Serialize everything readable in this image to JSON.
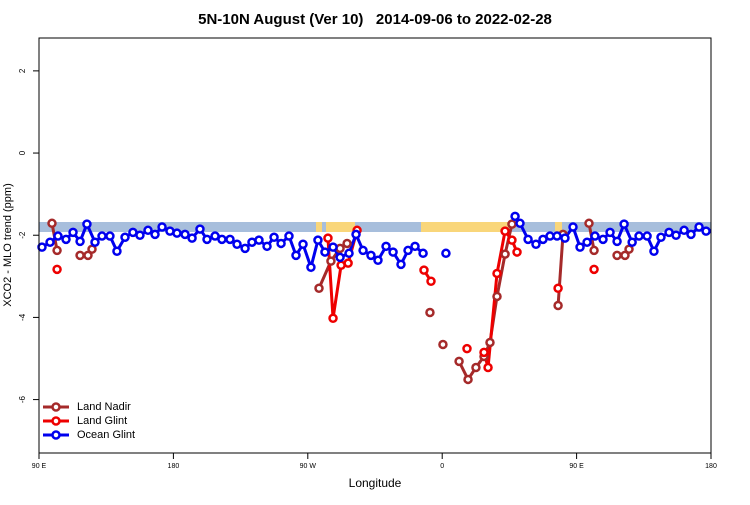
{
  "chart_data": {
    "type": "line",
    "title": "5N-10N August (Ver 10)   2014-09-06 to 2022-02-28",
    "xlabel": "Longitude",
    "ylabel": "XCO2 - MLO trend (ppm)",
    "xlim": [
      90,
      540
    ],
    "xticks": [
      {
        "value": 90,
        "label": "90 E"
      },
      180,
      {
        "value": 270,
        "label": "90 W"
      },
      {
        "value": 360,
        "label": "0"
      },
      {
        "value": 450,
        "label": "90 E"
      },
      {
        "value": 540,
        "label": "180"
      }
    ],
    "ylim": [
      -7.3,
      2.8
    ],
    "yticks": [
      2,
      0,
      -2,
      -4,
      -6
    ],
    "legend": "bottomleft",
    "series": [
      {
        "name": "Land Nadir",
        "color": "#a52a2a",
        "x": [
          98.7,
          102.1,
          null,
          117.5,
          122.8,
          125.5,
          null,
          277.5,
          285.5,
          291.6,
          296.3,
          null,
          351.8,
          null,
          360.5,
          null,
          371.3,
          377.3,
          382.6,
          388.0,
          392.0,
          396.7,
          402.1,
          406.7,
          null,
          437.6,
          440.9,
          null,
          458.3,
          461.7,
          null,
          477.1,
          482.4,
          485.1
        ],
        "values": [
          -1.71,
          -2.37,
          null,
          -2.49,
          -2.49,
          -2.34,
          null,
          -3.29,
          -2.63,
          -2.32,
          -2.2,
          null,
          -3.88,
          null,
          -4.66,
          null,
          -5.07,
          -5.51,
          -5.22,
          -4.95,
          -4.61,
          -3.49,
          -2.46,
          -1.73,
          null,
          -3.71,
          -1.98,
          null,
          -1.71,
          -2.37,
          null,
          -2.49,
          -2.49,
          -2.34
        ]
      },
      {
        "name": "Land Glint",
        "color": "#ee0000",
        "x": [
          102.1,
          null,
          283.5,
          286.9,
          292.3,
          297.0,
          303.0,
          null,
          347.8,
          352.5,
          null,
          376.6,
          null,
          388.0,
          390.7,
          396.7,
          402.1,
          406.7,
          410.1,
          null,
          437.6,
          null,
          461.7
        ],
        "values": [
          -2.83,
          null,
          -2.07,
          -4.02,
          -2.73,
          -2.68,
          -1.88,
          null,
          -2.85,
          -3.12,
          null,
          -4.76,
          null,
          -4.85,
          -5.22,
          -2.93,
          -1.9,
          -2.12,
          -2.41,
          null,
          -3.29,
          null,
          -2.83
        ]
      },
      {
        "name": "Ocean Glint",
        "color": "#0000ee",
        "x": [
          92.0,
          97.4,
          102.7,
          108.1,
          112.8,
          117.5,
          122.1,
          127.5,
          132.2,
          137.5,
          142.2,
          147.6,
          152.9,
          157.6,
          163.0,
          167.7,
          172.4,
          177.7,
          182.4,
          187.8,
          192.5,
          197.8,
          202.5,
          207.9,
          212.5,
          217.9,
          222.6,
          228.0,
          232.6,
          237.3,
          242.7,
          247.4,
          252.1,
          257.4,
          262.1,
          266.8,
          272.1,
          276.8,
          281.5,
          286.9,
          291.6,
          297.6,
          302.3,
          307.0,
          312.3,
          317.0,
          322.4,
          327.1,
          332.4,
          337.1,
          341.8,
          347.2,
          null,
          362.5,
          null,
          408.8,
          412.1,
          417.5,
          422.8,
          427.5,
          432.2,
          436.9,
          442.2,
          447.6,
          452.3,
          457.0,
          462.3,
          467.7,
          472.4,
          477.1,
          481.8,
          487.2,
          491.8,
          497.2,
          501.8,
          506.5,
          511.9,
          516.6,
          522.0,
          526.6,
          532.0,
          536.7
        ],
        "values": [
          -2.29,
          -2.17,
          -2.02,
          -2.1,
          -1.93,
          -2.15,
          -1.73,
          -2.17,
          -2.02,
          -2.02,
          -2.39,
          -2.05,
          -1.93,
          -2.0,
          -1.88,
          -1.98,
          -1.8,
          -1.9,
          -1.95,
          -1.98,
          -2.07,
          -1.85,
          -2.1,
          -2.02,
          -2.1,
          -2.1,
          -2.22,
          -2.32,
          -2.17,
          -2.12,
          -2.27,
          -2.05,
          -2.2,
          -2.02,
          -2.49,
          -2.22,
          -2.78,
          -2.12,
          -2.41,
          -2.29,
          -2.54,
          -2.44,
          -1.98,
          -2.37,
          -2.49,
          -2.61,
          -2.27,
          -2.41,
          -2.71,
          -2.37,
          -2.27,
          -2.44,
          null,
          -2.44,
          null,
          -1.54,
          -1.71,
          -2.1,
          -2.22,
          -2.1,
          -2.02,
          -2.02,
          -2.07,
          -1.8,
          -2.29,
          -2.17,
          -2.02,
          -2.1,
          -1.93,
          -2.15,
          -1.73,
          -2.17,
          -2.02,
          -2.02,
          -2.39,
          -2.05,
          -1.93,
          -2.0,
          -1.88,
          -1.98,
          -1.8,
          -1.9
        ]
      }
    ]
  }
}
